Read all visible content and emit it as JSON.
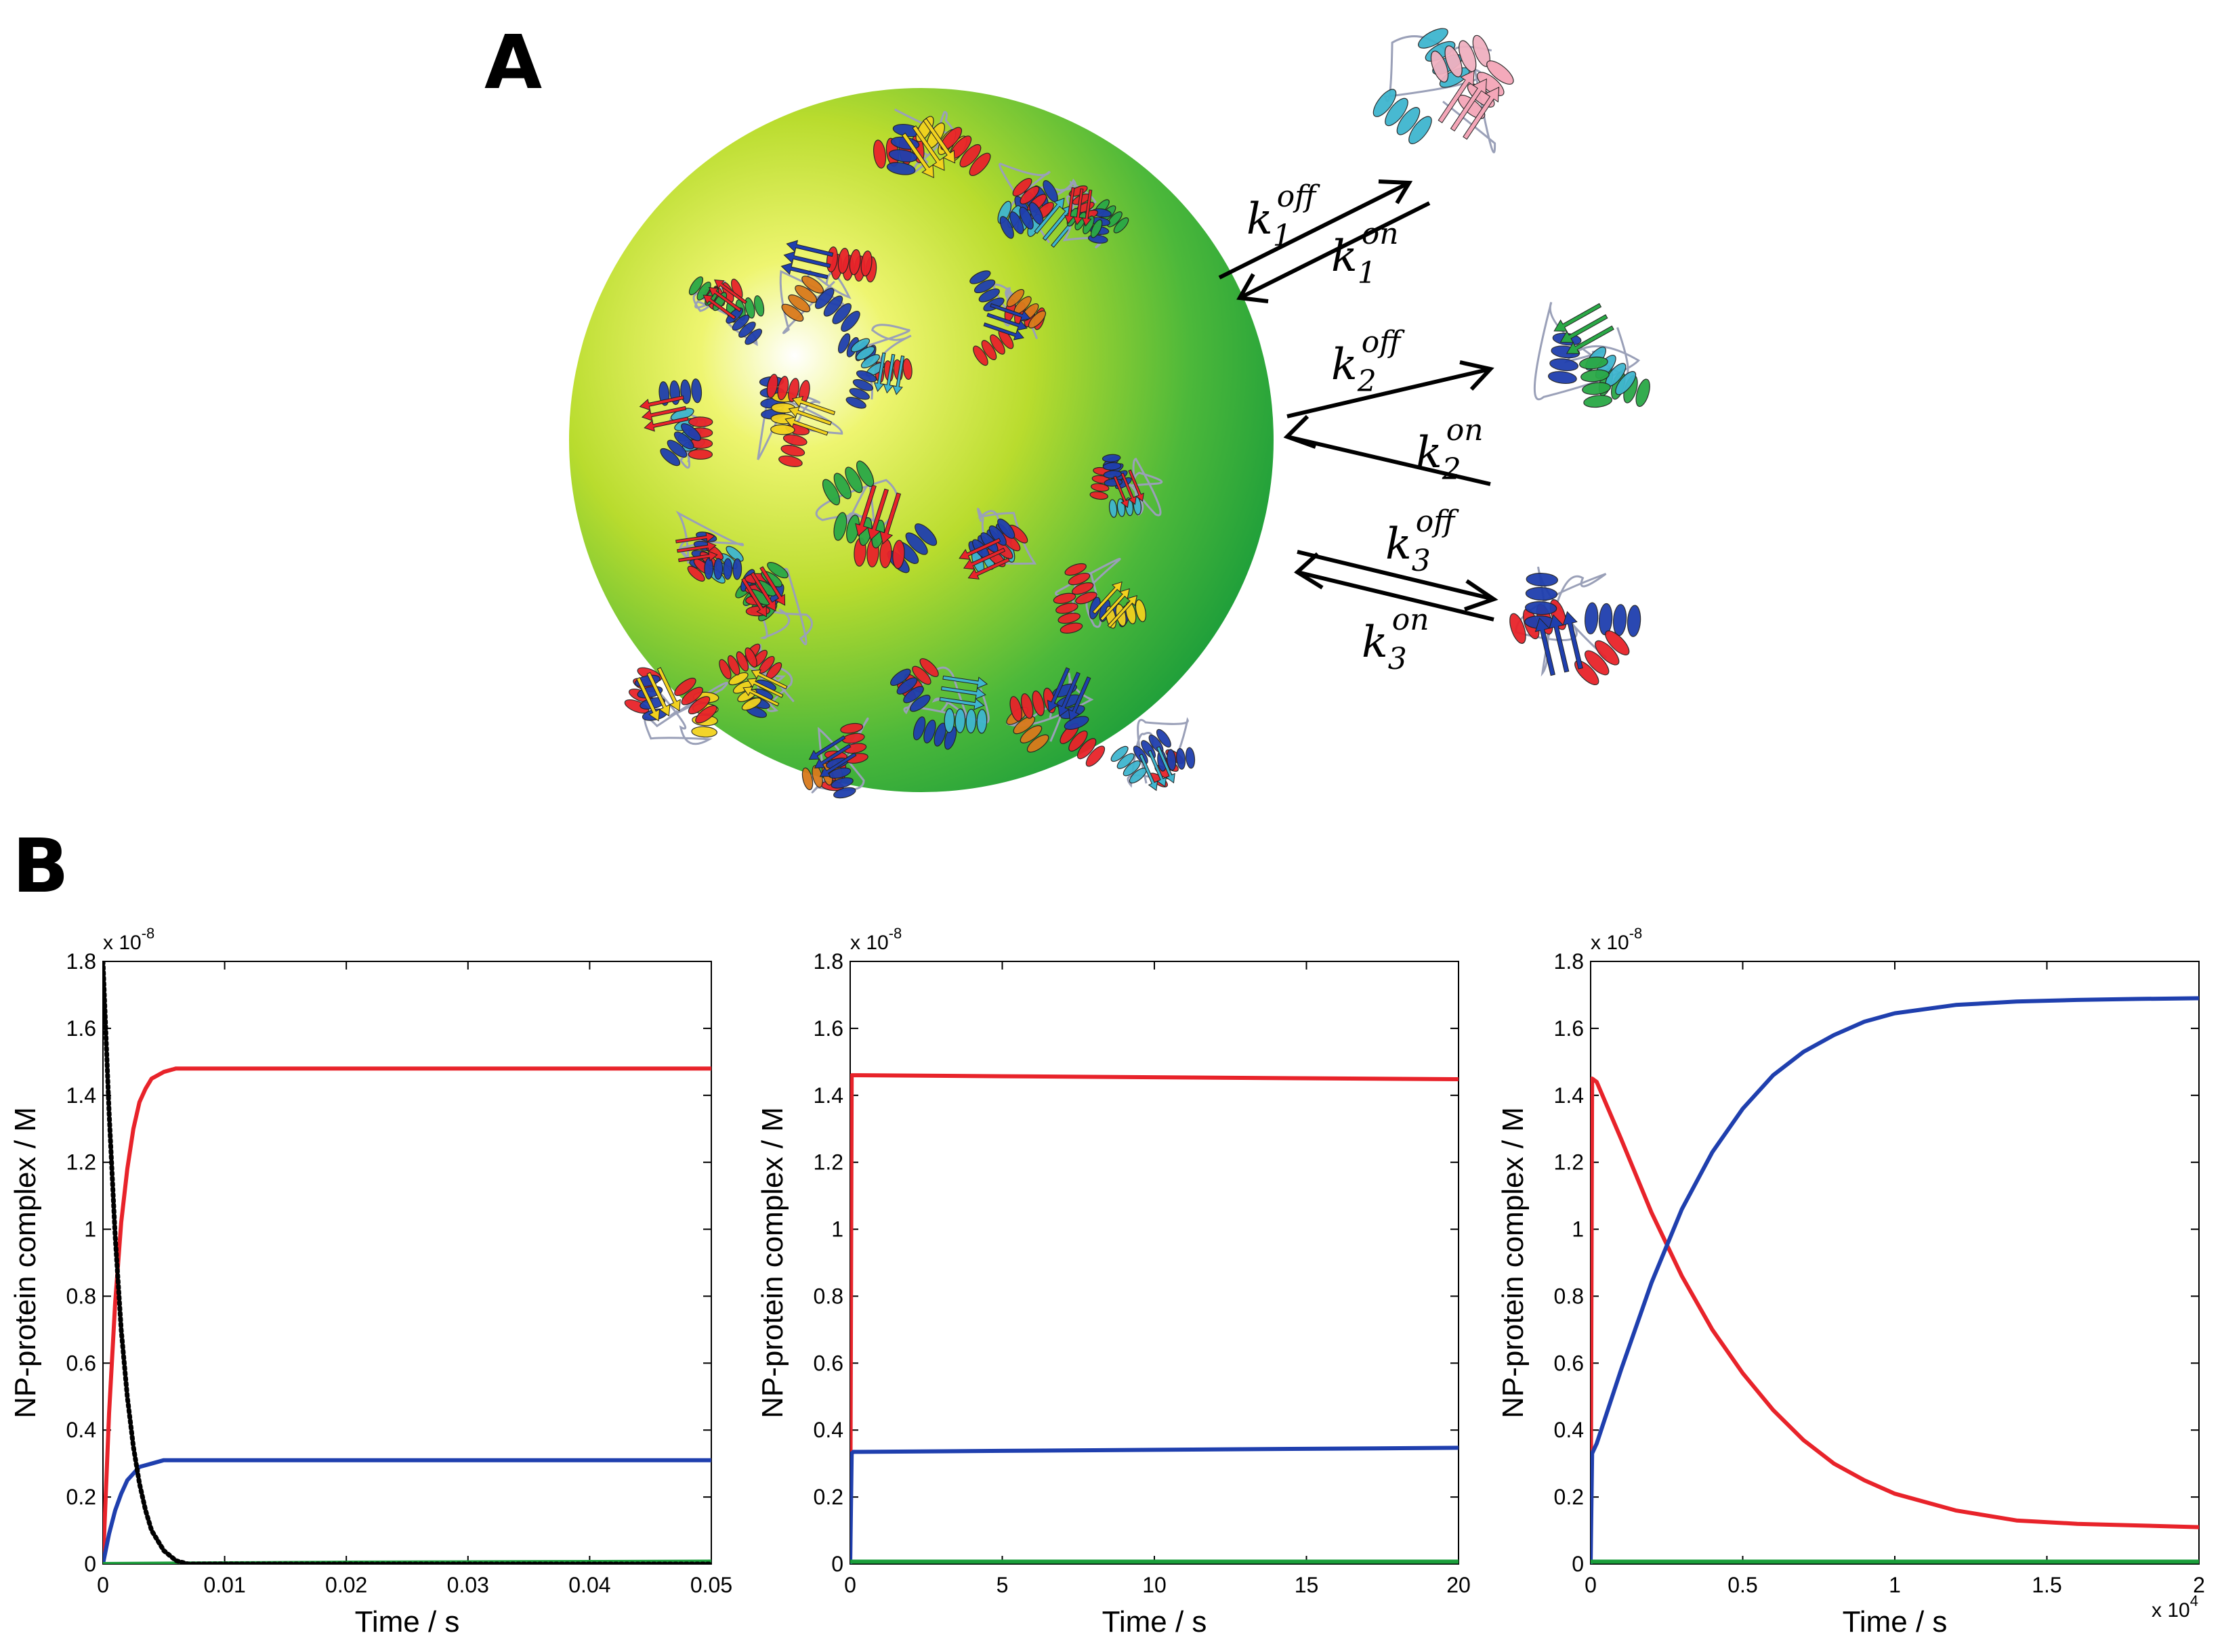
{
  "figure": {
    "panel_a_label": "A",
    "panel_b_label": "B"
  },
  "scheme": {
    "rate_constants": [
      {
        "off": "k",
        "off_sub": "1",
        "off_sup": "off",
        "on": "k",
        "on_sub": "1",
        "on_sup": "on"
      },
      {
        "off": "k",
        "off_sub": "2",
        "off_sup": "off",
        "on": "k",
        "on_sub": "2",
        "on_sup": "on"
      },
      {
        "off": "k",
        "off_sub": "3",
        "off_sup": "off",
        "on": "k",
        "on_sub": "3",
        "on_sup": "on"
      }
    ],
    "colors": {
      "sphere_light": "#e8f25a",
      "sphere_dark": "#1a9e3a",
      "protein_red": "#e8232a",
      "protein_blue": "#1f3fae",
      "protein_cyan": "#3fb6cf",
      "protein_green": "#2aa846",
      "protein_yellow": "#f2d21e",
      "protein_orange": "#d97a1c"
    }
  },
  "chart_data": [
    {
      "type": "line",
      "xlabel": "Time / s",
      "ylabel": "NP-protein complex / M",
      "multiplier": "x 10",
      "multiplier_exp": "-8",
      "xlim": [
        0,
        0.05
      ],
      "ylim": [
        0,
        1.8
      ],
      "xticks": [
        0,
        0.01,
        0.02,
        0.03,
        0.04,
        0.05
      ],
      "xtick_labels": [
        "0",
        "0.01",
        "0.02",
        "0.03",
        "0.04",
        "0.05"
      ],
      "yticks": [
        0,
        0.2,
        0.4,
        0.6,
        0.8,
        1,
        1.2,
        1.4,
        1.6,
        1.8
      ],
      "ytick_labels": [
        "0",
        "0.2",
        "0.4",
        "0.6",
        "0.8",
        "1",
        "1.2",
        "1.4",
        "1.6",
        "1.8"
      ],
      "grid": false,
      "series": [
        {
          "color": "#e8232a",
          "style": "solid",
          "x": [
            0,
            0.0005,
            0.001,
            0.0015,
            0.002,
            0.0025,
            0.003,
            0.0035,
            0.004,
            0.005,
            0.006,
            0.007,
            0.008,
            0.01,
            0.02,
            0.03,
            0.04,
            0.05
          ],
          "y": [
            0,
            0.45,
            0.78,
            1.02,
            1.18,
            1.3,
            1.38,
            1.42,
            1.45,
            1.47,
            1.48,
            1.48,
            1.48,
            1.48,
            1.48,
            1.48,
            1.48,
            1.48
          ]
        },
        {
          "color": "#1f3fae",
          "style": "solid",
          "x": [
            0,
            0.0005,
            0.001,
            0.0015,
            0.002,
            0.0025,
            0.003,
            0.004,
            0.005,
            0.006,
            0.008,
            0.01,
            0.02,
            0.03,
            0.04,
            0.05
          ],
          "y": [
            0,
            0.09,
            0.16,
            0.21,
            0.25,
            0.27,
            0.29,
            0.3,
            0.31,
            0.31,
            0.31,
            0.31,
            0.31,
            0.31,
            0.31,
            0.31
          ]
        },
        {
          "color": "#1a9e3a",
          "style": "solid",
          "x": [
            0,
            0.01,
            0.02,
            0.03,
            0.04,
            0.05
          ],
          "y": [
            0,
            0.002,
            0.004,
            0.005,
            0.006,
            0.007
          ]
        },
        {
          "color": "#000000",
          "style": "dotted",
          "x": [
            0,
            0.0005,
            0.001,
            0.0015,
            0.002,
            0.0025,
            0.003,
            0.0035,
            0.004,
            0.005,
            0.006,
            0.007,
            0.01,
            0.02,
            0.03,
            0.04,
            0.05
          ],
          "y": [
            1.8,
            1.35,
            0.98,
            0.7,
            0.5,
            0.35,
            0.24,
            0.16,
            0.1,
            0.04,
            0.01,
            0,
            0,
            0,
            0,
            0,
            0
          ]
        }
      ]
    },
    {
      "type": "line",
      "xlabel": "Time / s",
      "ylabel": "NP-protein complex / M",
      "multiplier": "x 10",
      "multiplier_exp": "-8",
      "xlim": [
        0,
        20
      ],
      "ylim": [
        0,
        1.8
      ],
      "xticks": [
        0,
        5,
        10,
        15,
        20
      ],
      "xtick_labels": [
        "0",
        "5",
        "10",
        "15",
        "20"
      ],
      "yticks": [
        0,
        0.2,
        0.4,
        0.6,
        0.8,
        1,
        1.2,
        1.4,
        1.6,
        1.8
      ],
      "ytick_labels": [
        "0",
        "0.2",
        "0.4",
        "0.6",
        "0.8",
        "1",
        "1.2",
        "1.4",
        "1.6",
        "1.8"
      ],
      "grid": false,
      "series": [
        {
          "color": "#e8232a",
          "style": "solid",
          "x": [
            0,
            0.05,
            0.1,
            5,
            10,
            15,
            20
          ],
          "y": [
            0,
            1.46,
            1.46,
            1.457,
            1.454,
            1.451,
            1.448
          ]
        },
        {
          "color": "#1f3fae",
          "style": "solid",
          "x": [
            0,
            0.05,
            0.1,
            5,
            10,
            15,
            20
          ],
          "y": [
            0,
            0.33,
            0.335,
            0.338,
            0.341,
            0.344,
            0.347
          ]
        },
        {
          "color": "#1a9e3a",
          "style": "solid",
          "x": [
            0,
            5,
            10,
            15,
            20
          ],
          "y": [
            0.007,
            0.007,
            0.007,
            0.007,
            0.007
          ]
        }
      ]
    },
    {
      "type": "line",
      "xlabel": "Time / s",
      "ylabel": "NP-protein complex / M",
      "multiplier": "x 10",
      "multiplier_exp": "-8",
      "x_multiplier": "x 10",
      "x_multiplier_exp": "4",
      "xlim": [
        0,
        2
      ],
      "ylim": [
        0,
        1.8
      ],
      "xticks": [
        0,
        0.5,
        1,
        1.5,
        2
      ],
      "xtick_labels": [
        "0",
        "0.5",
        "1",
        "1.5",
        "2"
      ],
      "yticks": [
        0,
        0.2,
        0.4,
        0.6,
        0.8,
        1,
        1.2,
        1.4,
        1.6,
        1.8
      ],
      "ytick_labels": [
        "0",
        "0.2",
        "0.4",
        "0.6",
        "0.8",
        "1",
        "1.2",
        "1.4",
        "1.6",
        "1.8"
      ],
      "grid": false,
      "series": [
        {
          "color": "#e8232a",
          "style": "solid",
          "x": [
            0,
            0.005,
            0.02,
            0.1,
            0.2,
            0.3,
            0.4,
            0.5,
            0.6,
            0.7,
            0.8,
            0.9,
            1.0,
            1.2,
            1.4,
            1.6,
            1.8,
            2.0
          ],
          "y": [
            0,
            1.45,
            1.44,
            1.27,
            1.05,
            0.86,
            0.7,
            0.57,
            0.46,
            0.37,
            0.3,
            0.25,
            0.21,
            0.16,
            0.13,
            0.12,
            0.115,
            0.11
          ]
        },
        {
          "color": "#1f3fae",
          "style": "solid",
          "x": [
            0,
            0.005,
            0.02,
            0.1,
            0.2,
            0.3,
            0.4,
            0.5,
            0.6,
            0.7,
            0.8,
            0.9,
            1.0,
            1.2,
            1.4,
            1.6,
            1.8,
            2.0
          ],
          "y": [
            0,
            0.33,
            0.36,
            0.58,
            0.84,
            1.06,
            1.23,
            1.36,
            1.46,
            1.53,
            1.58,
            1.62,
            1.645,
            1.67,
            1.68,
            1.685,
            1.688,
            1.69
          ]
        },
        {
          "color": "#1a9e3a",
          "style": "solid",
          "x": [
            0,
            0.5,
            1,
            1.5,
            2
          ],
          "y": [
            0.007,
            0.007,
            0.007,
            0.007,
            0.007
          ]
        }
      ]
    }
  ]
}
